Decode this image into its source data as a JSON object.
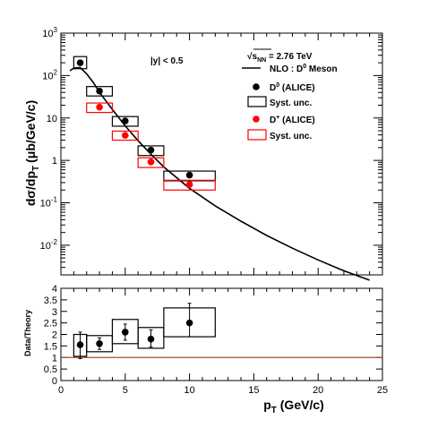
{
  "colors": {
    "d0": "#000000",
    "dplus": "#ff0000",
    "nlo": "#000000",
    "unity": "#a0522d"
  },
  "chart_data": [
    {
      "type": "scatter",
      "log_y": true,
      "xlim": [
        0,
        25
      ],
      "ylim": [
        0.002,
        1000
      ],
      "ylabel": "dσ/dp",
      "ylabel_sub": "T",
      "ylabel_unit": "(μb/GeV/c)",
      "annotation": "|y| < 0.5",
      "energy": {
        "prefix": "√s",
        "sub": "NN",
        "text": " = 2.76 TeV"
      },
      "y_ticks": [
        {
          "value": 0.01,
          "base": "10",
          "exp": "-2"
        },
        {
          "value": 0.1,
          "base": "10",
          "exp": "-1"
        },
        {
          "value": 1,
          "base": "1",
          "exp": ""
        },
        {
          "value": 10,
          "base": "10",
          "exp": ""
        },
        {
          "value": 100,
          "base": "10",
          "exp": "2"
        },
        {
          "value": 1000,
          "base": "10",
          "exp": "3"
        }
      ],
      "legend": [
        {
          "type": "line",
          "label": "NLO : D",
          "sup": "0",
          "tail": " Meson"
        },
        {
          "type": "marker",
          "color_key": "d0",
          "label": "D",
          "sup": "0",
          "tail": " (ALICE)"
        },
        {
          "type": "box",
          "color_key": "d0",
          "label": "Syst. unc.",
          "sup": "",
          "tail": ""
        },
        {
          "type": "marker",
          "color_key": "dplus",
          "label": "D",
          "sup": "+",
          "tail": " (ALICE)"
        },
        {
          "type": "box",
          "color_key": "dplus",
          "label": "Syst. unc.",
          "sup": "",
          "tail": ""
        }
      ],
      "series": [
        {
          "name": "D0 (ALICE)",
          "color_key": "d0",
          "points": [
            {
              "x": 1.5,
              "y": 200,
              "xlo": 1,
              "xhi": 2,
              "sys_lo": 145,
              "sys_hi": 280
            },
            {
              "x": 3,
              "y": 43,
              "xlo": 2,
              "xhi": 4,
              "sys_lo": 33,
              "sys_hi": 55
            },
            {
              "x": 5,
              "y": 8.5,
              "xlo": 4,
              "xhi": 6,
              "sys_lo": 6.4,
              "sys_hi": 10.8
            },
            {
              "x": 7,
              "y": 1.75,
              "xlo": 6,
              "xhi": 8,
              "sys_lo": 1.3,
              "sys_hi": 2.2
            },
            {
              "x": 10,
              "y": 0.45,
              "xlo": 8,
              "xhi": 12,
              "sys_lo": 0.33,
              "sys_hi": 0.56
            }
          ]
        },
        {
          "name": "D+ (ALICE)",
          "color_key": "dplus",
          "points": [
            {
              "x": 3,
              "y": 18,
              "xlo": 2,
              "xhi": 4,
              "sys_lo": 13.5,
              "sys_hi": 22.5
            },
            {
              "x": 5,
              "y": 3.9,
              "xlo": 4,
              "xhi": 6,
              "sys_lo": 3.0,
              "sys_hi": 4.9
            },
            {
              "x": 7,
              "y": 0.92,
              "xlo": 6,
              "xhi": 8,
              "sys_lo": 0.68,
              "sys_hi": 1.15
            },
            {
              "x": 10,
              "y": 0.27,
              "xlo": 8,
              "xhi": 12,
              "sys_lo": 0.2,
              "sys_hi": 0.34
            }
          ]
        }
      ],
      "nlo_curve": {
        "name": "NLO : D0 Meson",
        "x": [
          0.7,
          1.0,
          1.5,
          2.0,
          2.5,
          3.0,
          4.0,
          5.0,
          6.0,
          7.0,
          8.0,
          10.0,
          12.0,
          14.0,
          16.0,
          18.0,
          20.0,
          22.0,
          24.0
        ],
        "y": [
          130,
          150,
          155,
          110,
          70,
          40,
          16,
          6.5,
          2.9,
          1.4,
          0.7,
          0.22,
          0.085,
          0.037,
          0.017,
          0.0085,
          0.0045,
          0.0025,
          0.0015
        ]
      }
    },
    {
      "type": "scatter",
      "xlim": [
        0,
        25
      ],
      "ylim": [
        0,
        4
      ],
      "xlabel": "p",
      "xlabel_sub": "T",
      "xlabel_unit": " (GeV/c)",
      "ylabel": "Data/Theory",
      "x_ticks": [
        "0",
        "5",
        "10",
        "15",
        "20",
        "25"
      ],
      "y_ticks": [
        "0",
        "0.5",
        "1",
        "1.5",
        "2",
        "2.5",
        "3",
        "3.5",
        "4"
      ],
      "unity_line": 1,
      "series": [
        {
          "name": "Data/Theory",
          "points": [
            {
              "x": 1.5,
              "y": 1.55,
              "err_lo": 0.95,
              "err_hi": 2.1,
              "xlo": 1,
              "xhi": 2,
              "sys_lo": 1.05,
              "sys_hi": 2.0
            },
            {
              "x": 3,
              "y": 1.6,
              "err_lo": 1.35,
              "err_hi": 1.85,
              "xlo": 2,
              "xhi": 4,
              "sys_lo": 1.25,
              "sys_hi": 1.95
            },
            {
              "x": 5,
              "y": 2.1,
              "err_lo": 1.75,
              "err_hi": 2.45,
              "xlo": 4,
              "xhi": 6,
              "sys_lo": 1.6,
              "sys_hi": 2.65
            },
            {
              "x": 7,
              "y": 1.8,
              "err_lo": 1.45,
              "err_hi": 2.2,
              "xlo": 6,
              "xhi": 8,
              "sys_lo": 1.4,
              "sys_hi": 2.3
            },
            {
              "x": 10,
              "y": 2.5,
              "err_lo": 1.9,
              "err_hi": 3.35,
              "xlo": 8,
              "xhi": 12,
              "sys_lo": 1.9,
              "sys_hi": 3.15
            }
          ]
        }
      ]
    }
  ]
}
